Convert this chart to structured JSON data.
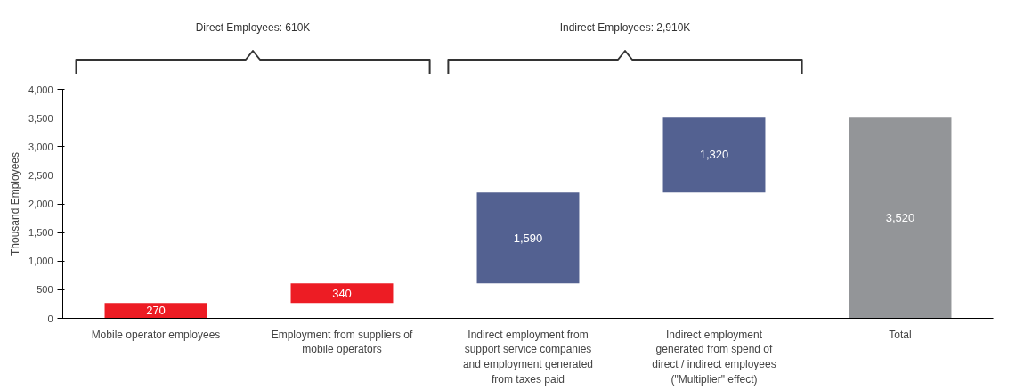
{
  "chart_data": {
    "type": "bar",
    "ylabel": "Thousand Employees",
    "categories": [
      "Mobile operator employees",
      "Employment from suppliers of mobile operators",
      "Indirect employment from support service companies and employment generated from taxes paid",
      "Indirect employment generated from spend of direct / indirect employees (\"Multiplier\" effect)",
      "Total"
    ],
    "values": [
      270,
      340,
      1590,
      1320,
      3520
    ],
    "value_labels": [
      "270",
      "340",
      "1,590",
      "1,320",
      "3,520"
    ],
    "base": [
      0,
      270,
      610,
      2200,
      0
    ],
    "colors": [
      "#ed1c24",
      "#ed1c24",
      "#536191",
      "#536191",
      "#939598"
    ],
    "ylim": [
      0,
      4000
    ],
    "yticks": [
      0,
      500,
      {
        "value": 1000,
        "label": "1,000"
      },
      {
        "value": 1500,
        "label": "1,500"
      },
      {
        "value": 2000,
        "label": "2,000"
      },
      {
        "value": 2500,
        "label": "2,500"
      },
      {
        "value": 3000,
        "label": "3,000"
      },
      {
        "value": 3500,
        "label": "3,500"
      },
      {
        "value": 4000,
        "label": "4,000"
      }
    ],
    "grid": false,
    "annotations": [
      "Direct Employees: 610K",
      "Indirect Employees: 2,910K"
    ]
  }
}
